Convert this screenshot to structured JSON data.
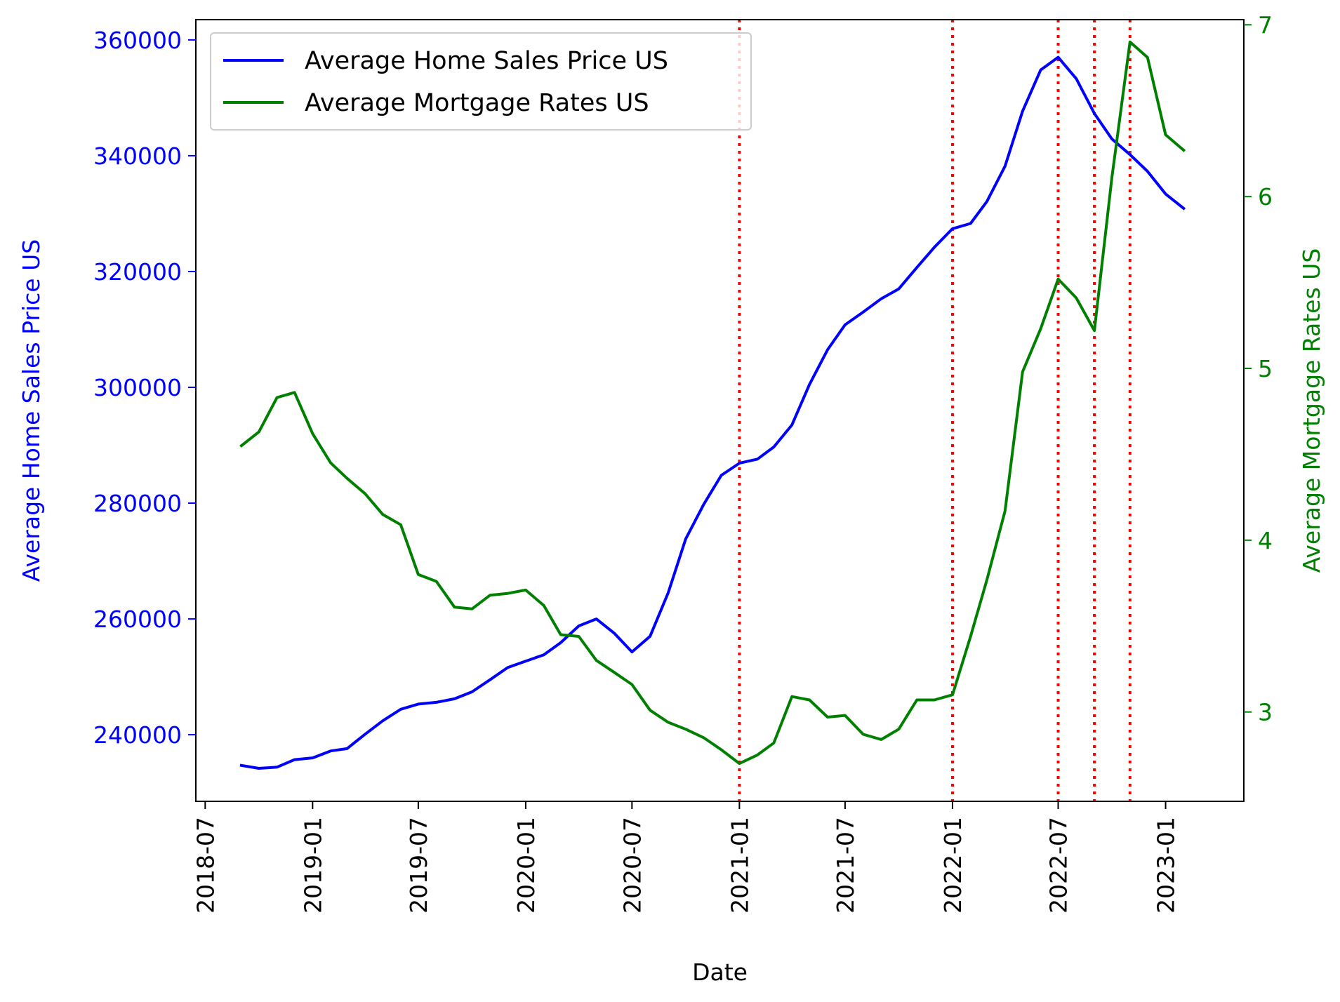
{
  "chart_data": {
    "type": "line",
    "xlabel": "Date",
    "x_tick_labels": [
      "2018-07",
      "2019-01",
      "2019-07",
      "2020-01",
      "2020-07",
      "2021-01",
      "2021-07",
      "2022-01",
      "2022-07",
      "2023-01"
    ],
    "x_range": [
      "2018-06-15",
      "2023-05-15"
    ],
    "y_left": {
      "label": "Average Home Sales Price US",
      "color": "#0000ff",
      "ticks": [
        240000,
        260000,
        280000,
        300000,
        320000,
        340000,
        360000
      ],
      "range": [
        228500,
        363500
      ]
    },
    "y_right": {
      "label": "Average Mortgage Rates US",
      "color": "#008000",
      "ticks": [
        3,
        4,
        5,
        6,
        7
      ],
      "range": [
        2.48,
        7.03
      ]
    },
    "vlines": {
      "color": "#ff0000",
      "style": "dotted",
      "dates": [
        "2021-01-01",
        "2022-01-01",
        "2022-07-01",
        "2022-09-01",
        "2022-11-01"
      ]
    },
    "legend": {
      "position": "top-left"
    },
    "series": [
      {
        "name": "Average Home Sales Price US",
        "axis": "left",
        "color": "#0000ff",
        "x": [
          "2018-09-01",
          "2018-10-01",
          "2018-11-01",
          "2018-12-01",
          "2019-01-01",
          "2019-02-01",
          "2019-03-01",
          "2019-04-01",
          "2019-05-01",
          "2019-06-01",
          "2019-07-01",
          "2019-08-01",
          "2019-09-01",
          "2019-10-01",
          "2019-11-01",
          "2019-12-01",
          "2020-01-01",
          "2020-02-01",
          "2020-03-01",
          "2020-04-01",
          "2020-05-01",
          "2020-06-01",
          "2020-07-01",
          "2020-08-01",
          "2020-09-01",
          "2020-10-01",
          "2020-11-01",
          "2020-12-01",
          "2021-01-01",
          "2021-02-01",
          "2021-03-01",
          "2021-04-01",
          "2021-05-01",
          "2021-06-01",
          "2021-07-01",
          "2021-08-01",
          "2021-09-01",
          "2021-10-01",
          "2021-11-01",
          "2021-12-01",
          "2022-01-01",
          "2022-02-01",
          "2022-03-01",
          "2022-04-01",
          "2022-05-01",
          "2022-06-01",
          "2022-07-01",
          "2022-08-01",
          "2022-09-01",
          "2022-10-01",
          "2022-11-01",
          "2022-12-01",
          "2023-01-01",
          "2023-02-01"
        ],
        "values": [
          234700,
          234200,
          234400,
          235700,
          236000,
          237200,
          237600,
          240100,
          242400,
          244400,
          245300,
          245600,
          246200,
          247400,
          249500,
          251600,
          252700,
          253800,
          255900,
          258800,
          260000,
          257500,
          254300,
          257000,
          264500,
          273800,
          279800,
          284800,
          286900,
          287600,
          289700,
          293500,
          300500,
          306500,
          310800,
          313000,
          315300,
          317000,
          320700,
          324200,
          327400,
          328300,
          332100,
          338200,
          347700,
          354800,
          357000,
          353300,
          347300,
          342900,
          340200,
          337300,
          333400,
          330900
        ]
      },
      {
        "name": "Average Mortgage Rates US",
        "axis": "right",
        "color": "#008000",
        "x": [
          "2018-09-01",
          "2018-10-01",
          "2018-11-01",
          "2018-12-01",
          "2019-01-01",
          "2019-02-01",
          "2019-03-01",
          "2019-04-01",
          "2019-05-01",
          "2019-06-01",
          "2019-07-01",
          "2019-08-01",
          "2019-09-01",
          "2019-10-01",
          "2019-11-01",
          "2019-12-01",
          "2020-01-01",
          "2020-02-01",
          "2020-03-01",
          "2020-04-01",
          "2020-05-01",
          "2020-06-01",
          "2020-07-01",
          "2020-08-01",
          "2020-09-01",
          "2020-10-01",
          "2020-11-01",
          "2020-12-01",
          "2021-01-01",
          "2021-02-01",
          "2021-03-01",
          "2021-04-01",
          "2021-05-01",
          "2021-06-01",
          "2021-07-01",
          "2021-08-01",
          "2021-09-01",
          "2021-10-01",
          "2021-11-01",
          "2021-12-01",
          "2022-01-01",
          "2022-02-01",
          "2022-03-01",
          "2022-04-01",
          "2022-05-01",
          "2022-06-01",
          "2022-07-01",
          "2022-08-01",
          "2022-09-01",
          "2022-10-01",
          "2022-11-01",
          "2022-12-01",
          "2023-01-01",
          "2023-02-01"
        ],
        "values": [
          4.55,
          4.63,
          4.83,
          4.86,
          4.62,
          4.45,
          4.36,
          4.27,
          4.15,
          4.09,
          3.8,
          3.76,
          3.61,
          3.6,
          3.68,
          3.69,
          3.71,
          3.62,
          3.45,
          3.44,
          3.3,
          3.23,
          3.16,
          3.01,
          2.94,
          2.9,
          2.85,
          2.78,
          2.7,
          2.75,
          2.82,
          3.09,
          3.07,
          2.97,
          2.98,
          2.87,
          2.84,
          2.9,
          3.07,
          3.07,
          3.1,
          3.44,
          3.77,
          4.17,
          4.98,
          5.23,
          5.52,
          5.41,
          5.22,
          6.11,
          6.9,
          6.81,
          6.36,
          6.27
        ]
      }
    ]
  }
}
